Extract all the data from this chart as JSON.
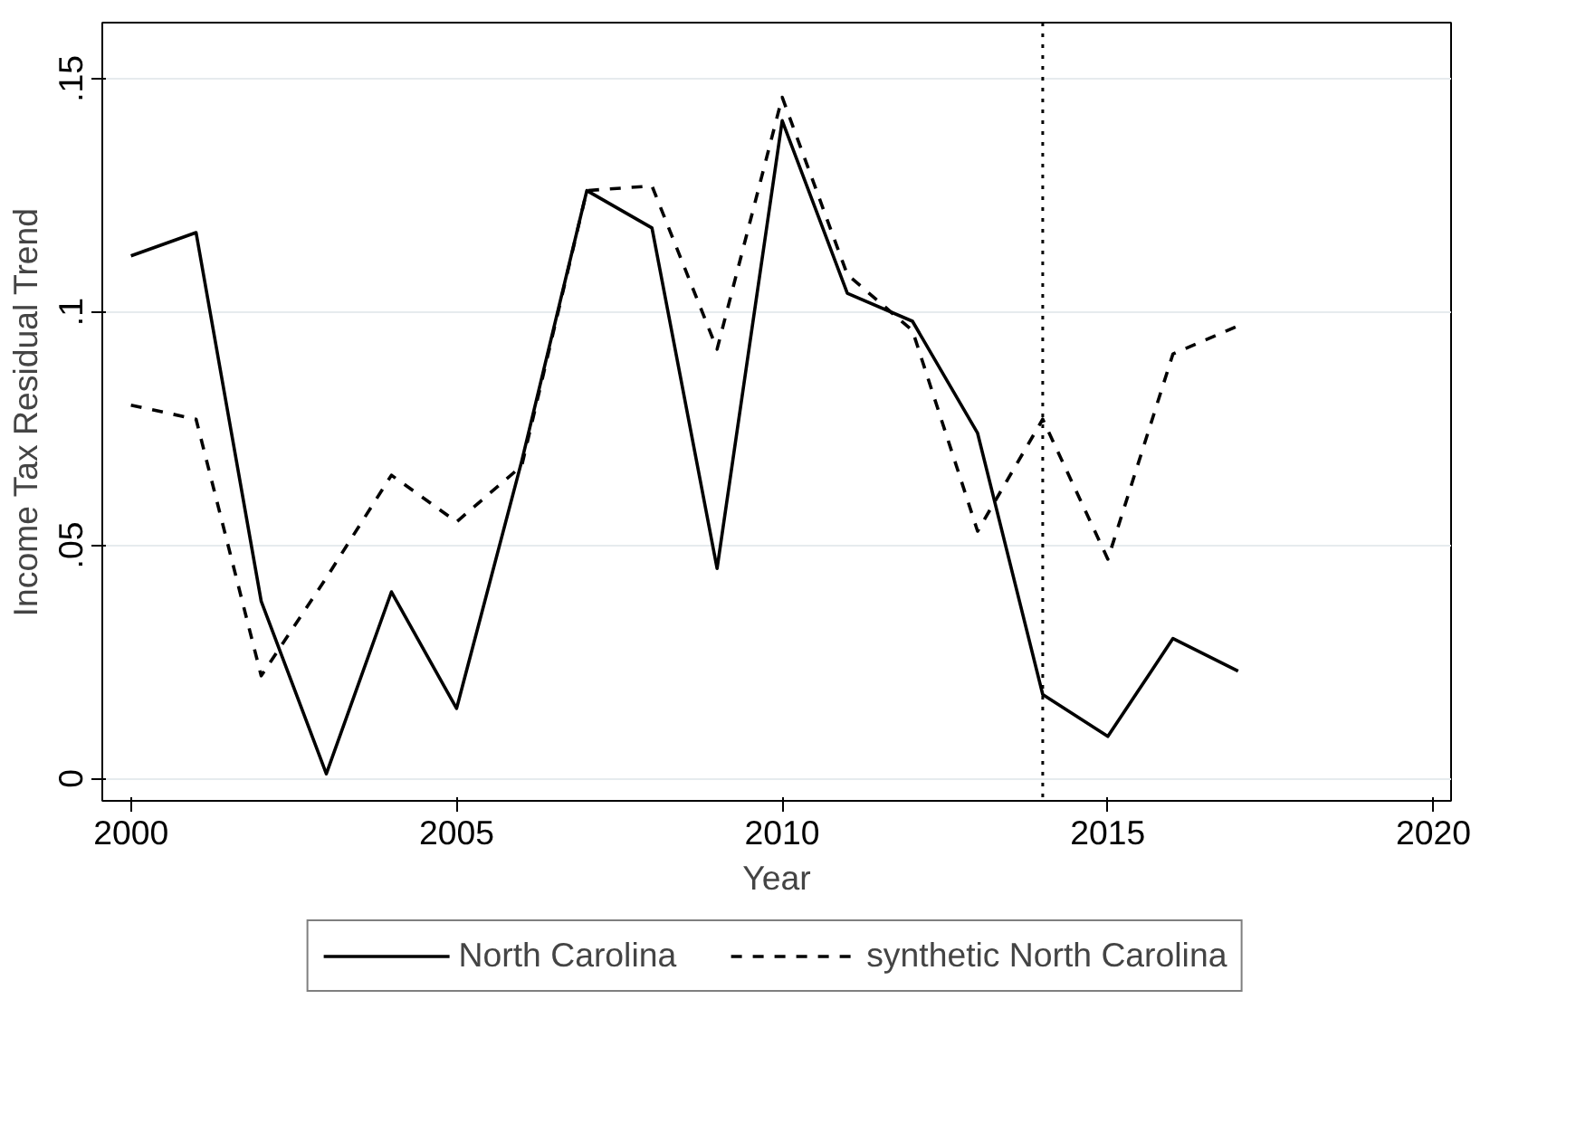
{
  "chart_data": {
    "type": "line",
    "xlabel": "Year",
    "ylabel": "Income Tax Residual Trend",
    "x": [
      2000,
      2001,
      2002,
      2003,
      2004,
      2005,
      2006,
      2007,
      2008,
      2009,
      2010,
      2011,
      2012,
      2013,
      2014,
      2015,
      2016,
      2017
    ],
    "series": [
      {
        "name": "North Carolina",
        "color": "#000000",
        "line_style": "solid",
        "values": [
          0.112,
          0.117,
          0.038,
          0.001,
          0.04,
          0.015,
          0.068,
          0.126,
          0.118,
          0.045,
          0.141,
          0.104,
          0.098,
          0.074,
          0.018,
          0.009,
          0.03,
          0.023
        ]
      },
      {
        "name": "synthetic North Carolina",
        "color": "#000000",
        "line_style": "dashed",
        "values": [
          0.08,
          0.077,
          0.022,
          0.043,
          0.065,
          0.055,
          0.067,
          0.126,
          0.127,
          0.092,
          0.146,
          0.108,
          0.096,
          0.053,
          0.077,
          0.047,
          0.091,
          0.097
        ]
      }
    ],
    "xlim": [
      1999.56,
      2020.27
    ],
    "ylim": [
      -0.0048,
      0.162
    ],
    "xticks": [
      2000,
      2005,
      2010,
      2015,
      2020
    ],
    "yticks": [
      {
        "value": 0,
        "label": "0"
      },
      {
        "value": 0.05,
        "label": ".05"
      },
      {
        "value": 0.1,
        "label": ".1"
      },
      {
        "value": 0.15,
        "label": ".15"
      }
    ],
    "grid": "y",
    "legend": "bottom",
    "marker": "none",
    "ref_lines": [
      {
        "axis": "x",
        "value": 2014,
        "line_style": "dotted",
        "color": "#000000"
      }
    ]
  }
}
